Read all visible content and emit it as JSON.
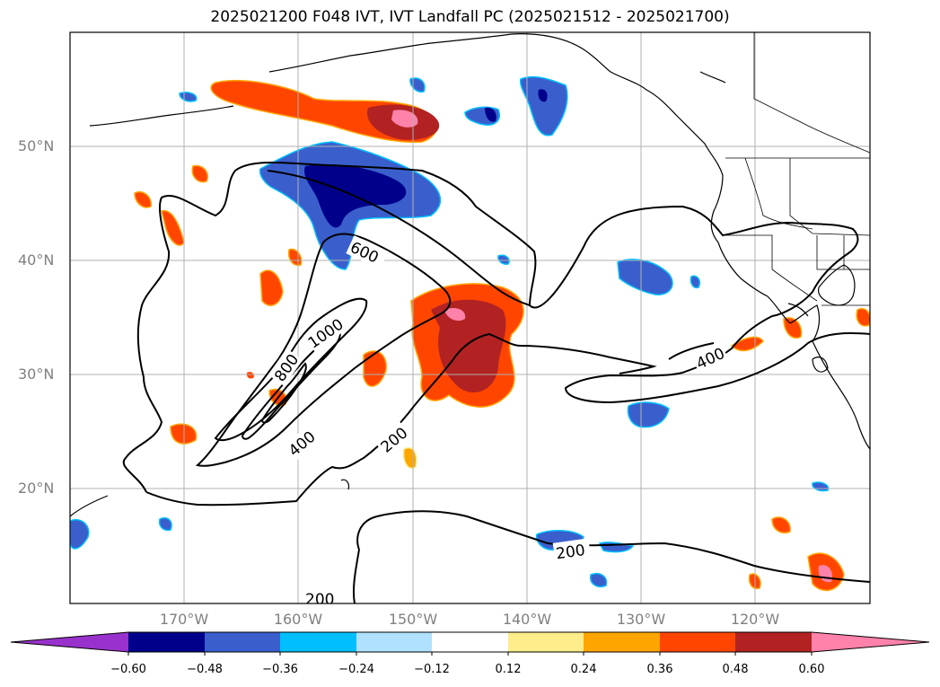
{
  "title": "2025021200 F048 IVT, IVT Landfall PC (2025021512 - 2025021700)",
  "lat_labels": [
    "50°N",
    "40°N",
    "30°N",
    "20°N"
  ],
  "lon_labels": [
    "170°W",
    "160°W",
    "150°W",
    "140°W",
    "130°W",
    "120°W"
  ],
  "contour_labels": [
    "600",
    "1000",
    "800",
    "400",
    "200",
    "400",
    "200",
    "200"
  ],
  "colorbar": {
    "ticks": [
      "−0.60",
      "−0.48",
      "−0.36",
      "−0.24",
      "−0.12",
      "0.12",
      "0.24",
      "0.36",
      "0.48",
      "0.60"
    ],
    "colors": [
      "#9932cc",
      "#00008b",
      "#3a5fcd",
      "#00bfff",
      "#b0e2ff",
      "#ffffff",
      "#ffec8b",
      "#ffa500",
      "#ff4500",
      "#b22222",
      "#ff82ab"
    ]
  }
}
